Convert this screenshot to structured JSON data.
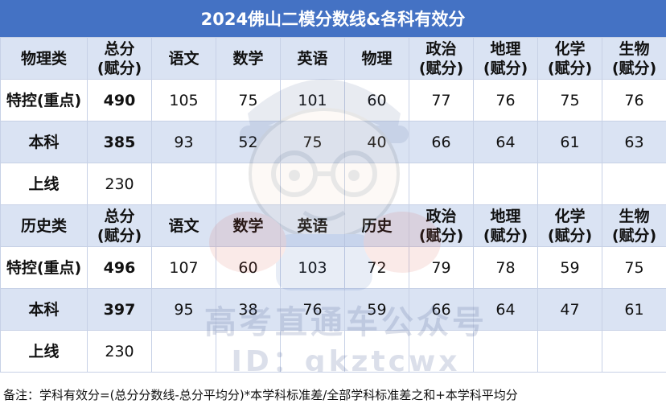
{
  "title": "2024佛山二模分数线&各科有效分",
  "physics": {
    "header": {
      "category": "物理类",
      "total": [
        "总分",
        "(赋分)"
      ],
      "chinese": "语文",
      "math": "数学",
      "english": "英语",
      "elective": "物理",
      "politics": [
        "政治",
        "(赋分)"
      ],
      "geography": [
        "地理",
        "(赋分)"
      ],
      "chemistry": [
        "化学",
        "(赋分)"
      ],
      "biology": [
        "生物",
        "(赋分)"
      ]
    },
    "rows": [
      {
        "label": "特控(重点)",
        "total": "490",
        "chinese": "105",
        "math": "75",
        "english": "101",
        "elective": "60",
        "politics": "77",
        "geography": "76",
        "chemistry": "75",
        "biology": "76"
      },
      {
        "label": "本科",
        "total": "385",
        "chinese": "93",
        "math": "52",
        "english": "75",
        "elective": "40",
        "politics": "66",
        "geography": "64",
        "chemistry": "61",
        "biology": "63"
      },
      {
        "label": "上线",
        "total": "230"
      }
    ]
  },
  "history": {
    "header": {
      "category": "历史类",
      "total": [
        "总分",
        "(赋分)"
      ],
      "chinese": "语文",
      "math": "数学",
      "english": "英语",
      "elective": "历史",
      "politics": [
        "政治",
        "(赋分)"
      ],
      "geography": [
        "地理",
        "(赋分)"
      ],
      "chemistry": [
        "化学",
        "(赋分)"
      ],
      "biology": [
        "生物",
        "(赋分)"
      ]
    },
    "rows": [
      {
        "label": "特控(重点)",
        "total": "496",
        "chinese": "107",
        "math": "60",
        "english": "103",
        "elective": "72",
        "politics": "79",
        "geography": "78",
        "chemistry": "59",
        "biology": "75"
      },
      {
        "label": "本科",
        "total": "397",
        "chinese": "95",
        "math": "38",
        "english": "76",
        "elective": "59",
        "politics": "66",
        "geography": "64",
        "chemistry": "47",
        "biology": "61"
      },
      {
        "label": "上线",
        "total": "230"
      }
    ]
  },
  "note": "备注：学科有效分=(总分分数线-总分平均分)*本学科标准差/全部学科标准差之和+本学科平均分",
  "watermark": {
    "line1": "高考直通车公众号",
    "line2": "ID：gkztcwx"
  },
  "colors": {
    "title_bg": "#4472c4",
    "band_bg": "#dae3f3",
    "highlight": "#e01e1e"
  }
}
